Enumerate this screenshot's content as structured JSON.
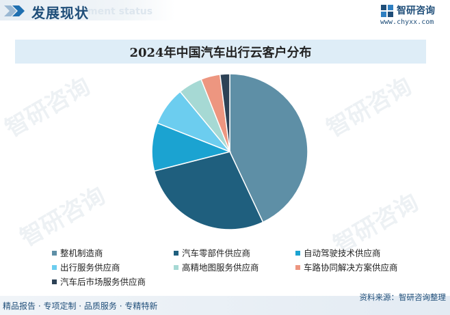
{
  "header": {
    "title": "发展现状",
    "subtitle": "ment status",
    "brand": "智研咨询",
    "site": "www.chyxx.com"
  },
  "watermark": "智研咨询",
  "colors": {
    "brand": "#1f4e79",
    "title_band": "#deedf7"
  },
  "chart_data": {
    "type": "pie",
    "title": "2024年中国汽车出行云客户分布",
    "labels": [
      "整机制造商",
      "汽车零部件供应商",
      "自动驾驶技术供应商",
      "出行服务供应商",
      "高精地图服务供应商",
      "车路协同解决方案供应商",
      "汽车后市场服务供应商"
    ],
    "values": [
      43,
      28,
      10,
      8,
      5,
      4,
      2
    ],
    "colors": [
      "#5e8fa6",
      "#1f5f7e",
      "#1ba3d1",
      "#6ccdef",
      "#a6d9d4",
      "#ed9680",
      "#2d4256"
    ],
    "start": "12 o'clock",
    "direction": "clockwise",
    "legend_position": "bottom"
  },
  "footer": {
    "left": "精品报告 · 专项定制 · 品质服务 · 专精特新",
    "right": "资料来源：智研咨询整理"
  }
}
